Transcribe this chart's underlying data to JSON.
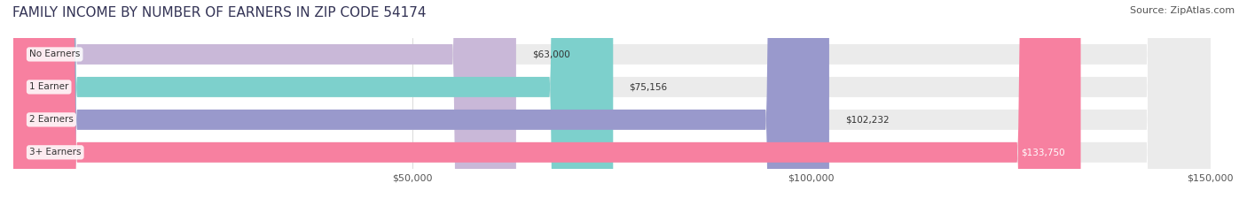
{
  "title": "FAMILY INCOME BY NUMBER OF EARNERS IN ZIP CODE 54174",
  "source": "Source: ZipAtlas.com",
  "categories": [
    "No Earners",
    "1 Earner",
    "2 Earners",
    "3+ Earners"
  ],
  "values": [
    63000,
    75156,
    102232,
    133750
  ],
  "value_labels": [
    "$63,000",
    "$75,156",
    "$102,232",
    "$133,750"
  ],
  "bar_colors": [
    "#c9b8d8",
    "#7dd0cc",
    "#9999cc",
    "#f780a0"
  ],
  "bar_bg_color": "#f0f0f0",
  "label_bg_color": "#ffffff",
  "xlim_min": 0,
  "xlim_max": 150000,
  "x_ticks": [
    50000,
    100000,
    150000
  ],
  "x_tick_labels": [
    "$50,000",
    "$100,000",
    "$150,000"
  ],
  "title_color": "#333355",
  "title_fontsize": 11,
  "source_color": "#555555",
  "source_fontsize": 8,
  "bar_height": 0.62,
  "background_color": "#ffffff"
}
